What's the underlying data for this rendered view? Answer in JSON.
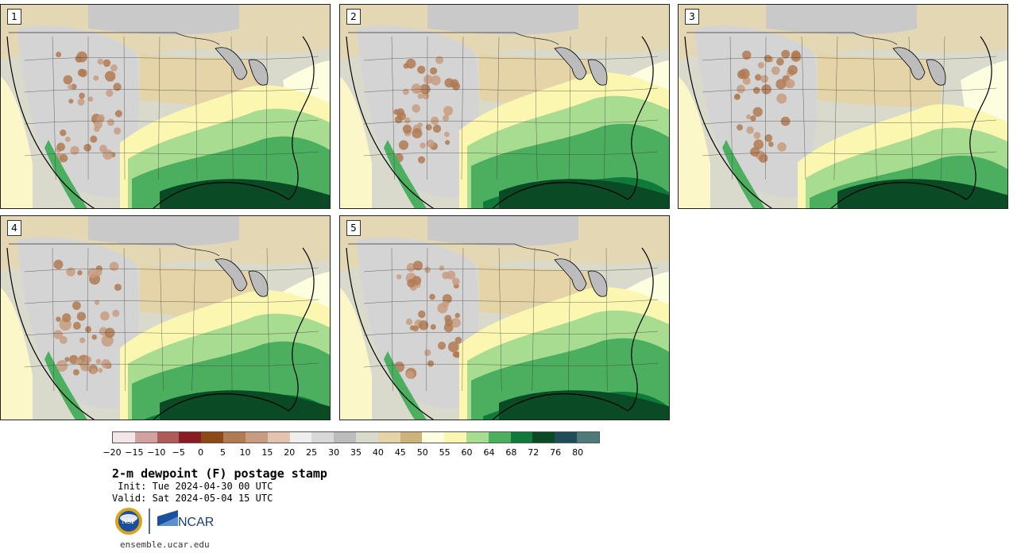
{
  "panels": [
    {
      "label": "1",
      "humid_extent": 0.62,
      "dry_southwest": 0.55
    },
    {
      "label": "2",
      "humid_extent": 0.7,
      "dry_southwest": 0.6
    },
    {
      "label": "3",
      "humid_extent": 0.5,
      "dry_southwest": 0.52
    },
    {
      "label": "4",
      "humid_extent": 0.66,
      "dry_southwest": 0.7
    },
    {
      "label": "5",
      "humid_extent": 0.68,
      "dry_southwest": 0.58
    }
  ],
  "colorbar": {
    "colors": [
      "#f3e6e6",
      "#d4a1a1",
      "#b05a5a",
      "#8c1c24",
      "#8e4a14",
      "#b07a52",
      "#c89c80",
      "#e2c4b0",
      "#eeeeee",
      "#d8d8d8",
      "#bcbcbc",
      "#d9d9cc",
      "#e4d4a8",
      "#cdb27a",
      "#fdfde0",
      "#fbf7b0",
      "#a8dc90",
      "#4caf5f",
      "#107a3a",
      "#0a4a24",
      "#1f4e5a",
      "#4e7a7a"
    ],
    "ticks": [
      "−20",
      "−15",
      "−10",
      "−5",
      "0",
      "5",
      "10",
      "15",
      "20",
      "25",
      "30",
      "35",
      "40",
      "45",
      "50",
      "55",
      "60",
      "64",
      "68",
      "72",
      "76",
      "80"
    ]
  },
  "title": "2-m dewpoint (F) postage stamp",
  "init": " Init: Tue 2024-04-30 00 UTC",
  "valid": "Valid: Sat 2024-05-04 15 UTC",
  "logos": {
    "nsf": "NSF",
    "ncar": "NCAR"
  },
  "url": "ensemble.ucar.edu"
}
